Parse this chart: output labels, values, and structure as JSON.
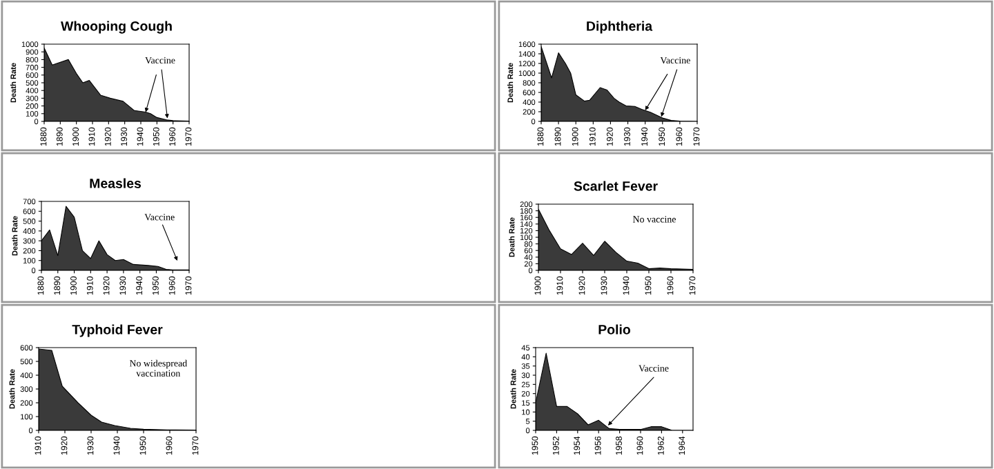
{
  "chart_data": [
    {
      "type": "area",
      "title": "Whooping Cough",
      "ylabel": "Death Rate",
      "x": [
        1880,
        1885,
        1895,
        1900,
        1904,
        1908,
        1915,
        1921,
        1929,
        1936,
        1943,
        1946,
        1950,
        1956,
        1960,
        1970
      ],
      "values": [
        950,
        730,
        800,
        620,
        500,
        530,
        340,
        300,
        260,
        140,
        120,
        100,
        50,
        20,
        10,
        5
      ],
      "color": "#3a3a3a",
      "xlim": [
        1880,
        1970
      ],
      "xticks": [
        1880,
        1890,
        1900,
        1910,
        1920,
        1930,
        1940,
        1950,
        1960,
        1970
      ],
      "ylim": [
        0,
        1000
      ],
      "yticks": [
        0,
        100,
        200,
        300,
        400,
        500,
        600,
        700,
        800,
        900,
        1000
      ],
      "annotations": [
        {
          "text": "Vaccine",
          "x": 1943,
          "y": 120
        }
      ]
    },
    {
      "type": "area",
      "title": "Diphtheria",
      "ylabel": "Death Rate",
      "x": [
        1880,
        1886,
        1890,
        1894,
        1897,
        1900,
        1905,
        1908,
        1914,
        1918,
        1922,
        1925,
        1929,
        1934,
        1938,
        1943,
        1950,
        1955,
        1960,
        1970
      ],
      "values": [
        1550,
        900,
        1420,
        1200,
        1000,
        550,
        420,
        440,
        700,
        650,
        480,
        400,
        320,
        310,
        250,
        190,
        70,
        20,
        5,
        0
      ],
      "color": "#3a3a3a",
      "xlim": [
        1880,
        1970
      ],
      "xticks": [
        1880,
        1890,
        1900,
        1910,
        1920,
        1930,
        1940,
        1950,
        1960,
        1970
      ],
      "ylim": [
        0,
        1600
      ],
      "yticks": [
        0,
        200,
        400,
        600,
        800,
        1000,
        1200,
        1400,
        1600
      ],
      "annotations": [
        {
          "text": "Vaccine",
          "x": 1940,
          "y": 230
        }
      ]
    },
    {
      "type": "area",
      "title": "Measles",
      "ylabel": "Death Rate",
      "x": [
        1880,
        1885,
        1890,
        1895,
        1900,
        1905,
        1910,
        1915,
        1920,
        1925,
        1930,
        1936,
        1945,
        1951,
        1956,
        1960,
        1970
      ],
      "values": [
        300,
        410,
        150,
        650,
        540,
        200,
        120,
        300,
        160,
        100,
        110,
        60,
        50,
        40,
        10,
        5,
        5
      ],
      "color": "#3a3a3a",
      "xlim": [
        1880,
        1970
      ],
      "xticks": [
        1880,
        1890,
        1900,
        1910,
        1920,
        1930,
        1940,
        1950,
        1960,
        1970
      ],
      "ylim": [
        0,
        700
      ],
      "yticks": [
        0,
        100,
        200,
        300,
        400,
        500,
        600,
        700
      ],
      "annotations": [
        "Vaccine"
      ]
    },
    {
      "type": "area",
      "title": "Scarlet Fever",
      "ylabel": "Death Rate",
      "x": [
        1900,
        1905,
        1910,
        1915,
        1920,
        1925,
        1930,
        1935,
        1940,
        1945,
        1950,
        1955,
        1960,
        1970
      ],
      "values": [
        185,
        120,
        65,
        48,
        82,
        45,
        88,
        55,
        28,
        22,
        5,
        7,
        5,
        3
      ],
      "color": "#3a3a3a",
      "xlim": [
        1900,
        1970
      ],
      "xticks": [
        1900,
        1910,
        1920,
        1930,
        1940,
        1950,
        1960,
        1970
      ],
      "ylim": [
        0,
        200
      ],
      "yticks": [
        0,
        20,
        40,
        60,
        80,
        100,
        120,
        140,
        160,
        180,
        200
      ],
      "annotations": [
        "No vaccine"
      ]
    },
    {
      "type": "area",
      "title": "Typhoid Fever",
      "ylabel": "Death Rate",
      "x": [
        1910,
        1915,
        1919,
        1925,
        1930,
        1934,
        1939,
        1945,
        1950,
        1959,
        1970
      ],
      "values": [
        590,
        580,
        320,
        200,
        110,
        60,
        35,
        15,
        8,
        4,
        2
      ],
      "color": "#3a3a3a",
      "xlim": [
        1910,
        1970
      ],
      "xticks": [
        1910,
        1920,
        1930,
        1940,
        1950,
        1960,
        1970
      ],
      "ylim": [
        0,
        600
      ],
      "yticks": [
        0,
        100,
        200,
        300,
        400,
        500,
        600
      ],
      "annotations": [
        "No widespread\nvaccination"
      ]
    },
    {
      "type": "area",
      "title": "Polio",
      "ylabel": "Death Rate",
      "x": [
        1950,
        1951,
        1952,
        1953,
        1954,
        1955,
        1956,
        1957,
        1958,
        1960,
        1961,
        1962,
        1963,
        1964,
        1965
      ],
      "values": [
        15,
        42,
        13,
        13,
        9,
        3,
        5.5,
        1,
        0.5,
        0.5,
        2,
        2,
        0,
        0,
        0
      ],
      "color": "#3a3a3a",
      "xlim": [
        1950,
        1965
      ],
      "xticks": [
        1950,
        1952,
        1954,
        1956,
        1958,
        1960,
        1962,
        1964
      ],
      "ylim": [
        0,
        45
      ],
      "yticks": [
        0,
        5,
        10,
        15,
        20,
        25,
        30,
        35,
        40,
        45
      ],
      "annotations": [
        "Vaccine"
      ]
    }
  ]
}
